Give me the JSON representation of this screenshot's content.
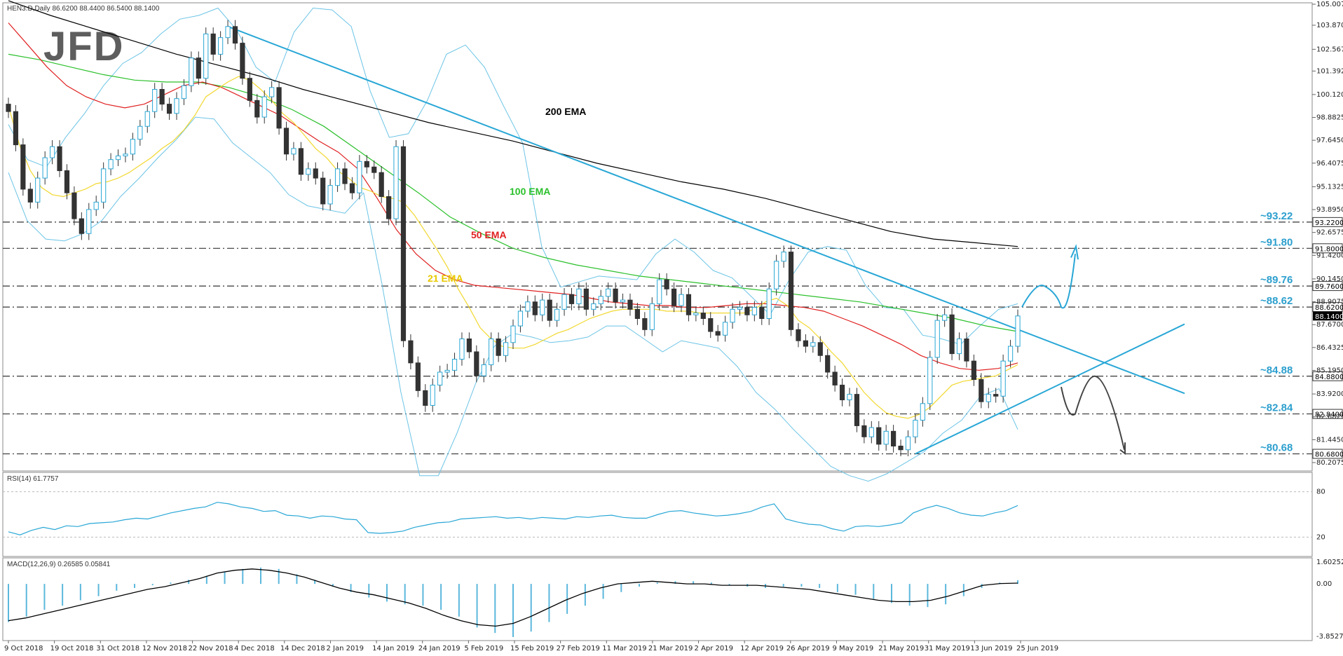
{
  "logo": "JFD",
  "chart_data": [
    {
      "type": "candlestick",
      "symbol_header": "HEN3.D,Daily  86.6200 88.4400 86.5400 88.1400",
      "ylim": [
        80.2075,
        105.0075
      ],
      "y_ticks": [
        "105.0075",
        "103.8700",
        "102.5675",
        "101.3925",
        "100.1200",
        "98.8825",
        "97.6450",
        "96.4075",
        "95.1325",
        "93.8950",
        "92.6575",
        "91.4200",
        "90.1450",
        "88.9075",
        "87.6700",
        "86.4325",
        "85.1950",
        "83.9200",
        "82.6825",
        "81.4450",
        "80.2075"
      ],
      "x_labels": [
        "9 Oct 2018",
        "19 Oct 2018",
        "31 Oct 2018",
        "12 Nov 2018",
        "22 Nov 2018",
        "4 Dec 2018",
        "14 Dec 2018",
        "2 Jan 2019",
        "14 Jan 2019",
        "24 Jan 2019",
        "5 Feb 2019",
        "15 Feb 2019",
        "27 Feb 2019",
        "11 Mar 2019",
        "21 Mar 2019",
        "2 Apr 2019",
        "12 Apr 2019",
        "26 Apr 2019",
        "9 May 2019",
        "21 May 2019",
        "31 May 2019",
        "13 Jun 2019",
        "25 Jun 2019"
      ],
      "levels": [
        {
          "value": 93.22,
          "label": "~93.22",
          "box": "93.2200"
        },
        {
          "value": 91.8,
          "label": "~91.80",
          "box": "91.8000"
        },
        {
          "value": 89.76,
          "label": "~89.76",
          "box": "89.7600"
        },
        {
          "value": 88.62,
          "label": "~88.62",
          "box": "88.6200"
        },
        {
          "value": 84.88,
          "label": "~84.88",
          "box": "84.8800"
        },
        {
          "value": 82.84,
          "label": "~82.84",
          "box": "82.8400"
        },
        {
          "value": 80.68,
          "label": "~80.68",
          "box": "80.6800"
        }
      ],
      "current_price_box": "88.1400",
      "ema_labels": [
        {
          "text": "200 EMA",
          "color": "#000000"
        },
        {
          "text": "100 EMA",
          "color": "#2bc02b"
        },
        {
          "text": "50 EMA",
          "color": "#e02020"
        },
        {
          "text": "21 EMA",
          "color": "#e8c800"
        }
      ],
      "closes": [
        99.2,
        97.4,
        95.0,
        94.3,
        95.6,
        96.7,
        97.3,
        96.0,
        94.8,
        93.4,
        92.6,
        93.9,
        94.3,
        96.1,
        96.6,
        96.8,
        96.9,
        97.7,
        98.4,
        99.2,
        100.4,
        99.6,
        99.1,
        99.9,
        100.6,
        102.1,
        101.0,
        103.4,
        102.3,
        103.2,
        103.8,
        102.9,
        101.0,
        99.8,
        98.9,
        100.0,
        100.5,
        98.3,
        96.9,
        97.2,
        95.8,
        96.1,
        95.6,
        94.2,
        95.2,
        96.1,
        95.3,
        94.8,
        96.5,
        96.2,
        95.9,
        94.6,
        93.4,
        97.3,
        86.8,
        85.6,
        84.1,
        83.3,
        84.4,
        85.1,
        85.2,
        85.8,
        86.9,
        86.2,
        84.9,
        85.5,
        86.9,
        86.0,
        86.7,
        87.6,
        88.4,
        88.9,
        88.2,
        89.0,
        87.9,
        88.5,
        89.3,
        88.8,
        89.6,
        88.5,
        88.8,
        89.2,
        89.6,
        88.9,
        89.0,
        88.5,
        88.0,
        87.4,
        88.8,
        90.1,
        89.6,
        88.7,
        89.3,
        88.2,
        88.3,
        88.0,
        87.3,
        87.1,
        87.8,
        88.5,
        88.6,
        88.2,
        88.6,
        88.0,
        89.6,
        91.1,
        91.6,
        87.4,
        86.8,
        86.5,
        86.7,
        86.0,
        85.1,
        84.4,
        83.6,
        83.9,
        82.2,
        81.6,
        82.1,
        81.2,
        81.9,
        81.1,
        80.9,
        81.6,
        82.5,
        83.4,
        85.9,
        87.9,
        88.2,
        86.1,
        86.9,
        85.7,
        84.7,
        83.5,
        83.9,
        83.8,
        85.7,
        86.5,
        88.14
      ],
      "ema21": [
        99.5,
        97.4,
        96.0,
        95.1,
        94.7,
        94.6,
        94.8,
        95.0,
        95.3,
        95.4,
        95.6,
        95.9,
        96.3,
        96.7,
        97.2,
        97.6,
        98.2,
        99.0,
        100.0,
        100.4,
        100.8,
        101.1,
        100.9,
        100.4,
        99.8,
        99.1,
        98.6,
        97.9,
        97.2,
        96.7,
        96.0,
        95.6,
        95.1,
        94.9,
        94.6,
        94.5,
        94.3,
        93.6,
        92.7,
        91.8,
        90.8,
        89.6,
        88.6,
        87.5,
        86.9,
        86.5,
        86.4,
        86.4,
        86.6,
        86.9,
        87.2,
        87.4,
        87.7,
        88.0,
        88.2,
        88.4,
        88.5,
        88.5,
        88.5,
        88.5,
        88.4,
        88.4,
        88.4,
        88.3,
        88.3,
        88.3,
        88.3,
        88.3,
        88.5,
        88.9,
        89.1,
        88.7,
        87.9,
        87.5,
        86.9,
        86.2,
        85.6,
        84.8,
        84.0,
        83.4,
        82.9,
        82.7,
        82.6,
        82.8,
        83.2,
        83.8,
        84.4,
        84.6,
        84.7,
        84.8,
        84.9,
        85.2,
        85.5
      ],
      "ema50": [
        104.0,
        102.8,
        101.6,
        100.6,
        100.0,
        99.6,
        99.4,
        99.6,
        100.1,
        100.6,
        100.8,
        100.5,
        100.0,
        99.5,
        99.0,
        98.3,
        97.6,
        97.0,
        96.1,
        94.5,
        92.8,
        91.5,
        90.6,
        90.1,
        89.8,
        89.7,
        89.6,
        89.5,
        89.4,
        89.3,
        89.1,
        88.9,
        88.8,
        88.7,
        88.7,
        88.6,
        88.6,
        88.7,
        88.8,
        88.8,
        88.7,
        88.6,
        88.4,
        88.0,
        87.6,
        87.1,
        86.6,
        86.0,
        85.6,
        85.3,
        85.2,
        85.3,
        85.6
      ],
      "ema100": [
        102.3,
        102.0,
        101.6,
        101.2,
        100.9,
        100.8,
        100.8,
        100.5,
        100.0,
        99.3,
        98.4,
        97.2,
        96.0,
        94.8,
        93.5,
        92.6,
        91.8,
        91.3,
        90.9,
        90.6,
        90.3,
        90.1,
        89.9,
        89.7,
        89.5,
        89.3,
        89.1,
        88.9,
        88.6,
        88.3,
        88.0,
        87.6,
        87.3
      ],
      "ema200": [
        105.2,
        104.4,
        103.7,
        103.0,
        102.3,
        101.7,
        101.1,
        100.4,
        99.8,
        99.2,
        98.6,
        98.1,
        97.6,
        97.0,
        96.4,
        95.9,
        95.4,
        95.0,
        94.5,
        93.9,
        93.3,
        92.7,
        92.3,
        92.1,
        91.9
      ],
      "bb_upper": [
        98.5,
        96.6,
        96.2,
        97.8,
        99.1,
        100.6,
        101.8,
        102.4,
        103.4,
        104.2,
        104.4,
        104.8,
        103.6,
        101.6,
        100.8,
        103.5,
        104.8,
        104.7,
        103.8,
        100.3,
        97.8,
        98.0,
        99.8,
        102.3,
        102.8,
        101.6,
        99.5,
        97.5,
        91.9,
        89.7,
        90.0,
        90.3,
        90.2,
        90.1,
        91.5,
        92.3,
        91.6,
        90.6,
        90.2,
        89.2,
        88.2,
        90.1,
        91.6,
        91.9,
        91.7,
        89.8,
        88.6,
        88.5,
        87.1,
        86.9,
        86.6,
        87.6,
        88.5,
        88.8
      ],
      "bb_lower": [
        95.9,
        93.3,
        92.3,
        92.2,
        92.6,
        93.3,
        94.6,
        95.6,
        96.7,
        97.7,
        98.9,
        98.8,
        97.5,
        96.7,
        95.9,
        94.7,
        94.1,
        93.9,
        93.7,
        94.8,
        89.8,
        84.0,
        79.5,
        79.5,
        81.8,
        84.5,
        86.5,
        87.2,
        87.0,
        86.7,
        86.8,
        87.0,
        87.6,
        87.6,
        86.9,
        86.2,
        86.8,
        86.6,
        86.4,
        85.4,
        84.0,
        83.1,
        82.0,
        81.0,
        80.0,
        79.5,
        79.2,
        79.6,
        80.2,
        80.8,
        81.8,
        82.5,
        83.8,
        84.2,
        82.0
      ]
    },
    {
      "type": "line",
      "name": "RSI(14) 61.7757",
      "ylim": [
        0,
        100
      ],
      "y_ticks": [
        "80",
        "20"
      ],
      "levels": [
        80,
        20
      ],
      "values": [
        27,
        23,
        29,
        33,
        30,
        35,
        34,
        38,
        39,
        40,
        43,
        45,
        44,
        48,
        52,
        55,
        58,
        60,
        66,
        64,
        60,
        58,
        54,
        55,
        49,
        48,
        45,
        48,
        47,
        44,
        43,
        26,
        25,
        26,
        28,
        33,
        36,
        39,
        40,
        44,
        45,
        46,
        47,
        45,
        46,
        44,
        46,
        45,
        44,
        47,
        46,
        48,
        49,
        46,
        45,
        45,
        50,
        54,
        55,
        52,
        50,
        48,
        49,
        51,
        54,
        60,
        64,
        44,
        40,
        37,
        36,
        31,
        28,
        34,
        35,
        34,
        36,
        39,
        52,
        58,
        62,
        58,
        52,
        49,
        48,
        52,
        55,
        61.78
      ]
    },
    {
      "type": "bar+line",
      "name": "MACD(12,26,9) 0.26585 0.05841",
      "ylim": [
        -3.85279,
        1.60252
      ],
      "y_ticks": [
        "1.60252",
        "0.00",
        "-3.85279"
      ],
      "histogram": [
        -2.8,
        -2.4,
        -1.9,
        -1.6,
        -1.2,
        -0.9,
        -0.5,
        -0.3,
        -0.1,
        0.1,
        0.3,
        0.6,
        0.9,
        1.1,
        1.2,
        1.1,
        0.7,
        0.3,
        -0.2,
        -0.6,
        -1.0,
        -1.3,
        -1.5,
        -1.6,
        -1.9,
        -2.4,
        -3.2,
        -3.6,
        -3.9,
        -3.5,
        -2.8,
        -2.2,
        -1.6,
        -1.1,
        -0.6,
        -0.2,
        0.1,
        0.2,
        0.2,
        0.1,
        -0.1,
        -0.2,
        -0.3,
        -0.2,
        -0.2,
        -0.3,
        -0.6,
        -0.8,
        -1.1,
        -1.4,
        -1.6,
        -1.7,
        -1.5,
        -0.9,
        -0.3,
        0.1,
        0.27
      ],
      "signal": [
        -2.7,
        -2.5,
        -2.2,
        -1.9,
        -1.6,
        -1.3,
        -1.0,
        -0.7,
        -0.4,
        -0.2,
        0.1,
        0.4,
        0.8,
        1.0,
        1.1,
        1.0,
        0.8,
        0.5,
        0.1,
        -0.3,
        -0.6,
        -0.8,
        -1.1,
        -1.4,
        -1.8,
        -2.3,
        -2.7,
        -3.0,
        -3.1,
        -2.9,
        -2.4,
        -1.8,
        -1.2,
        -0.7,
        -0.3,
        0.0,
        0.1,
        0.2,
        0.1,
        0.0,
        0.0,
        -0.1,
        -0.1,
        -0.1,
        -0.2,
        -0.3,
        -0.4,
        -0.6,
        -0.8,
        -1.0,
        -1.2,
        -1.3,
        -1.3,
        -1.2,
        -0.9,
        -0.5,
        -0.1,
        0.03,
        0.06
      ]
    }
  ]
}
